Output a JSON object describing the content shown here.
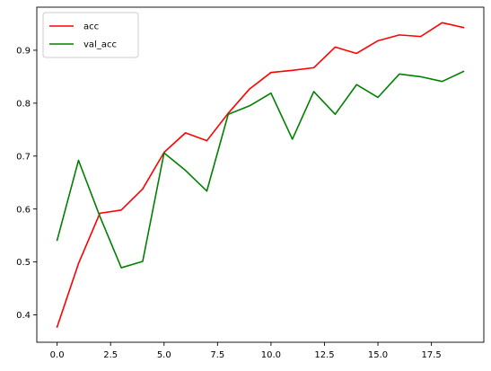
{
  "chart_data": {
    "type": "line",
    "title": "",
    "xlabel": "",
    "ylabel": "",
    "xlim": [
      -0.95,
      19.95
    ],
    "ylim": [
      0.3482,
      0.9814
    ],
    "x": [
      0,
      1,
      2,
      3,
      4,
      5,
      6,
      7,
      8,
      9,
      10,
      11,
      12,
      13,
      14,
      15,
      16,
      17,
      18,
      19
    ],
    "x_ticks": [
      0.0,
      2.5,
      5.0,
      7.5,
      10.0,
      12.5,
      15.0,
      17.5
    ],
    "x_tick_labels": [
      "0.0",
      "2.5",
      "5.0",
      "7.5",
      "10.0",
      "12.5",
      "15.0",
      "17.5"
    ],
    "y_ticks": [
      0.4,
      0.5,
      0.6,
      0.7,
      0.8,
      0.9
    ],
    "y_tick_labels": [
      "0.4",
      "0.5",
      "0.6",
      "0.7",
      "0.8",
      "0.9"
    ],
    "grid": false,
    "legend_position": "top-left",
    "series": [
      {
        "name": "acc",
        "color": "#ff0000",
        "values": [
          0.377,
          0.497,
          0.592,
          0.598,
          0.638,
          0.707,
          0.744,
          0.729,
          0.781,
          0.827,
          0.858,
          0.862,
          0.867,
          0.906,
          0.894,
          0.918,
          0.929,
          0.926,
          0.952,
          0.943
        ]
      },
      {
        "name": "val_acc",
        "color": "#008000",
        "values": [
          0.541,
          0.692,
          0.586,
          0.489,
          0.501,
          0.706,
          0.673,
          0.634,
          0.779,
          0.795,
          0.819,
          0.732,
          0.822,
          0.779,
          0.835,
          0.811,
          0.855,
          0.85,
          0.841,
          0.86
        ]
      }
    ]
  }
}
